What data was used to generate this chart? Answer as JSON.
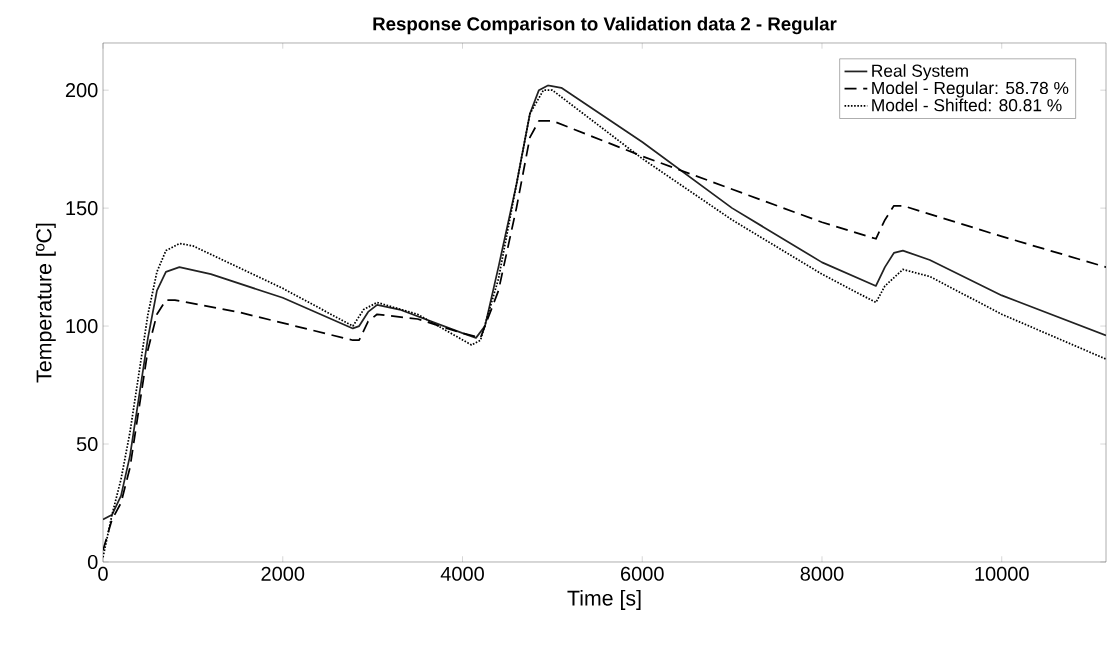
{
  "chart_data": {
    "type": "line",
    "title": "Response Comparison to Validation data 2 - Regular",
    "xlabel": "Time [s]",
    "ylabel": "Temperature [ºC]",
    "xlim": [
      0,
      11160
    ],
    "ylim": [
      0,
      220
    ],
    "xticks": [
      0,
      2000,
      4000,
      6000,
      8000,
      10000
    ],
    "yticks": [
      0,
      50,
      100,
      150,
      200
    ],
    "legend": "top right",
    "series": [
      {
        "name": "Real System",
        "color": "#222222",
        "line_style": "solid",
        "x": [
          0,
          100,
          200,
          300,
          400,
          500,
          600,
          700,
          850,
          1200,
          2000,
          2780,
          2850,
          2950,
          3050,
          3300,
          4000,
          4150,
          4250,
          4400,
          4600,
          4750,
          4850,
          4950,
          5100,
          6000,
          7000,
          8000,
          8600,
          8700,
          8800,
          8900,
          9200,
          10000,
          11160
        ],
        "values": [
          18,
          20,
          28,
          45,
          70,
          95,
          115,
          123,
          125,
          122,
          112,
          99,
          100,
          106,
          109,
          107,
          97,
          95,
          100,
          125,
          160,
          190,
          200,
          202,
          201,
          178,
          150,
          127,
          117,
          125,
          131,
          132,
          128,
          113,
          96
        ]
      },
      {
        "name": "Model - Regular: 58.78 %",
        "color": "#000000",
        "line_style": "dashed",
        "x": [
          0,
          100,
          200,
          300,
          400,
          500,
          600,
          700,
          800,
          1500,
          2780,
          2850,
          2950,
          3050,
          3500,
          4000,
          4200,
          4400,
          4600,
          4750,
          4850,
          5000,
          6000,
          7000,
          8000,
          8600,
          8700,
          8800,
          8900,
          10000,
          11160
        ],
        "values": [
          5,
          18,
          25,
          40,
          65,
          90,
          105,
          111,
          111,
          106,
          94,
          94,
          102,
          105,
          103,
          97,
          95,
          115,
          150,
          180,
          187,
          187,
          172,
          158,
          144,
          137,
          145,
          151,
          151,
          138,
          125
        ]
      },
      {
        "name": "Model - Shifted: 80.81 %",
        "color": "#000000",
        "line_style": "dotted",
        "x": [
          0,
          100,
          200,
          300,
          400,
          500,
          600,
          700,
          850,
          1000,
          2000,
          2780,
          2900,
          3050,
          3500,
          4100,
          4200,
          4400,
          4600,
          4750,
          4900,
          5000,
          6000,
          7000,
          8000,
          8600,
          8700,
          8900,
          9200,
          10000,
          11160
        ],
        "values": [
          2,
          20,
          35,
          55,
          80,
          105,
          123,
          132,
          135,
          134,
          116,
          100,
          107,
          110,
          105,
          92,
          94,
          120,
          160,
          190,
          200,
          200,
          171,
          145,
          122,
          110,
          117,
          124,
          121,
          105,
          86
        ]
      }
    ]
  }
}
